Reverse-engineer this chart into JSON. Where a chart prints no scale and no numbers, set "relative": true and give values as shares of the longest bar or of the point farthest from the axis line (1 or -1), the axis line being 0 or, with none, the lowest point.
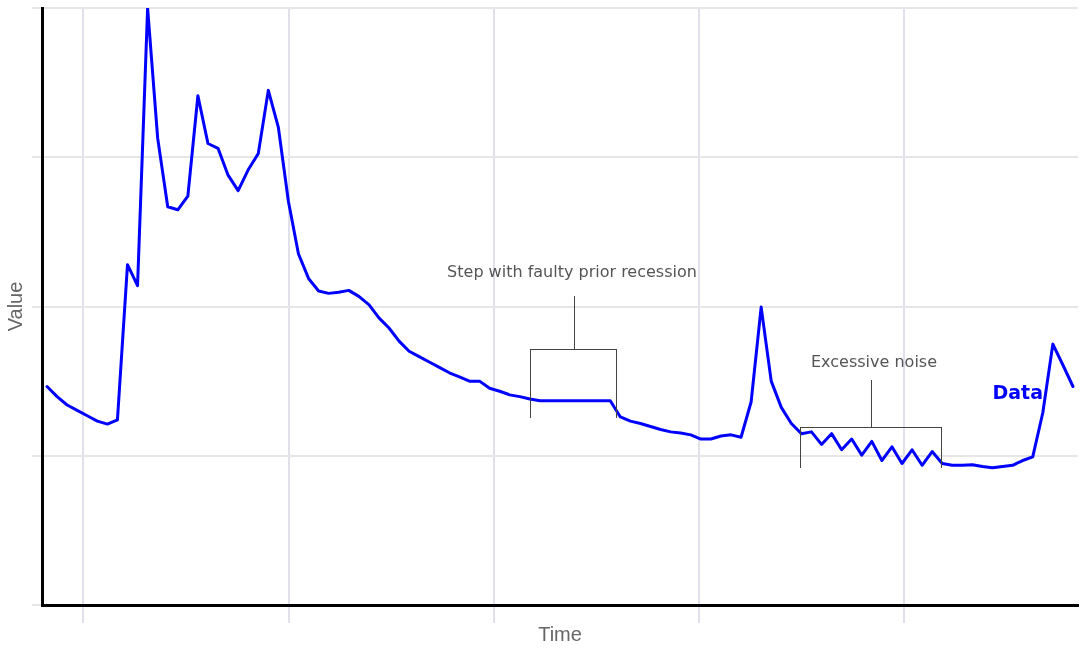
{
  "chart_data": {
    "type": "line",
    "relative": true,
    "xlabel": "Time",
    "ylabel": "Value",
    "grid": true,
    "legend": false,
    "marker": "none",
    "line_style": "solid",
    "annotations": [
      "Step with faulty prior recession",
      "Excessive noise"
    ],
    "categories": [
      null,
      null,
      null,
      null,
      null,
      null,
      null,
      null,
      null,
      null,
      null,
      null,
      null,
      null,
      null,
      null,
      null,
      null,
      null,
      null,
      null,
      null,
      null,
      null,
      null,
      null,
      null,
      null,
      null,
      null,
      null,
      null,
      null,
      null,
      null,
      null,
      null,
      null,
      null,
      null,
      null,
      null,
      null,
      null,
      null,
      null,
      null,
      null,
      null,
      null,
      null,
      null,
      null,
      null,
      null,
      null,
      null,
      null,
      null,
      null,
      null,
      null,
      null,
      null,
      null,
      null,
      null,
      null,
      null,
      null,
      null,
      null,
      null,
      null,
      null,
      null,
      null,
      null,
      null,
      null,
      null,
      null,
      null,
      null,
      null,
      null,
      null,
      null,
      null,
      null,
      null,
      null,
      null,
      null,
      null,
      null,
      null,
      null,
      null,
      null,
      null,
      null,
      null
    ],
    "series": [
      {
        "name": "Data",
        "color": "#0000ff",
        "values": [
          0.366,
          0.349,
          0.335,
          0.326,
          0.317,
          0.308,
          0.303,
          0.31,
          0.57,
          0.535,
          1.0,
          0.782,
          0.667,
          0.662,
          0.685,
          0.853,
          0.773,
          0.765,
          0.72,
          0.694,
          0.729,
          0.756,
          0.862,
          0.8,
          0.676,
          0.588,
          0.547,
          0.526,
          0.522,
          0.524,
          0.527,
          0.517,
          0.503,
          0.481,
          0.464,
          0.442,
          0.425,
          0.416,
          0.407,
          0.398,
          0.389,
          0.382,
          0.375,
          0.375,
          0.363,
          0.358,
          0.352,
          0.349,
          0.345,
          0.342,
          0.342,
          0.342,
          0.342,
          0.342,
          0.342,
          0.342,
          0.342,
          0.315,
          0.308,
          0.304,
          0.299,
          0.294,
          0.29,
          0.288,
          0.285,
          0.278,
          0.278,
          0.283,
          0.285,
          0.281,
          0.34,
          0.499,
          0.375,
          0.331,
          0.304,
          0.287,
          0.29,
          0.269,
          0.287,
          0.26,
          0.278,
          0.251,
          0.274,
          0.242,
          0.265,
          0.237,
          0.26,
          0.234,
          0.257,
          0.237,
          0.234,
          0.234,
          0.235,
          0.232,
          0.23,
          0.232,
          0.234,
          0.242,
          0.248,
          0.322,
          0.437,
          0.402,
          0.366
        ]
      }
    ]
  }
}
